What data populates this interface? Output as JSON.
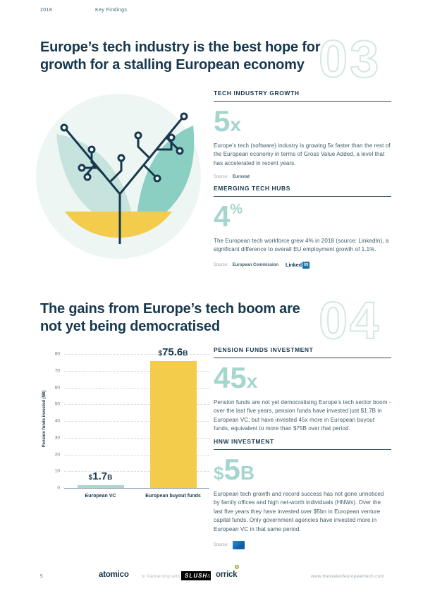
{
  "page": {
    "year": "2018",
    "section_label": "Key Findings",
    "page_number": "5",
    "footer": {
      "partner_primary": "atomico",
      "partnership_text": "In Partnership with",
      "partner_slush": "SLUSH",
      "ampersand": "&",
      "partner_orrick": "orrick",
      "website": "www.thestateofeuropeantech.com"
    }
  },
  "colors": {
    "navy_text": "#17384e",
    "teal_accent": "#a5d6ce",
    "teal_outline_number": "#d3e7e3",
    "yellow": "#f3cc4c",
    "bar_teal": "#a9d8d0"
  },
  "section3": {
    "number": "03",
    "title": "Europe’s tech industry is the best hope for growth for a stalling European economy",
    "stats": [
      {
        "label": "TECH INDUSTRY GROWTH",
        "value": "5",
        "suffix": "x",
        "text": "Europe’s tech (software) industry is growing 5x faster than the rest of the European economy in terms of Gross Value Added, a level that has accelerated in recent years.",
        "source_label": "Source:",
        "source": "Eurostat"
      },
      {
        "label": "EMERGING TECH HUBS",
        "value": "4",
        "suffix": "%",
        "text": "The European tech workforce grew 4% in 2018 (source: LinkedIn), a significant difference to overall EU employment growth of 1.1%.",
        "source_label": "Source:",
        "source": "European Commission",
        "source_logo": {
          "word": "Linked",
          "badge": "in"
        }
      }
    ]
  },
  "section4": {
    "number": "04",
    "title": "The gains from Europe’s tech boom are not yet being democratised",
    "stats": [
      {
        "label": "PENSION FUNDS INVESTMENT",
        "value": "45",
        "suffix": "x",
        "text": "Pension funds are not yet democratising Europe’s tech sector boom - over the last five years, pension funds have invested just $1.7B in European VC, but have invested 45x more in European buyout funds, equivalent to more than $75B over that period."
      },
      {
        "label": "HNW INVESTMENT",
        "prefix": "$",
        "value": "5",
        "suffix": "B",
        "text": "European tech growth and record success has not gone unnoticed by family offices and high net-worth individuals (HNWs). Over the last five years they have invested over $5bn in European venture capital funds. Only government agencies have invested more in European VC in that same period.",
        "source_label": "Source:"
      }
    ]
  },
  "chart_data": {
    "type": "bar",
    "categories": [
      "European VC",
      "European buyout funds"
    ],
    "values": [
      1.7,
      75.6
    ],
    "value_labels": [
      {
        "currency": "$",
        "number": "1.7",
        "unit": "B"
      },
      {
        "currency": "$",
        "number": "75.6",
        "unit": "B"
      }
    ],
    "colors": [
      "#a9d8d0",
      "#f3cc4c"
    ],
    "title": "",
    "xlabel": "",
    "ylabel": "Pension funds invested ($B)",
    "ylim": [
      0,
      80
    ],
    "ytick_step": 10,
    "grid": "dashed horizontal",
    "legend": "none"
  }
}
